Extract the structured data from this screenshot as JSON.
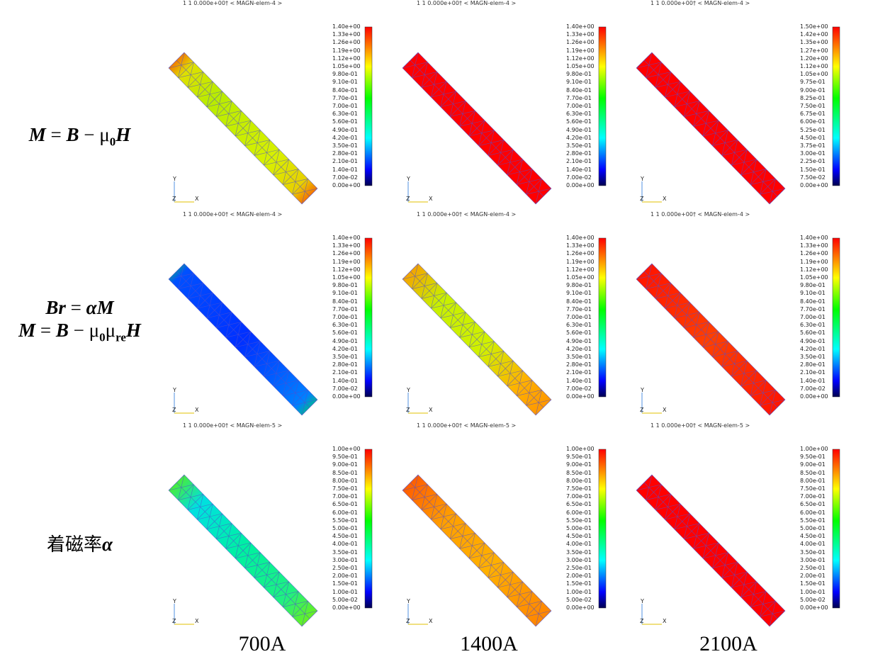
{
  "row_labels": [
    {
      "parts": [
        "M",
        " = ",
        "B",
        " − ",
        "μ",
        "0",
        "H"
      ]
    },
    {
      "line1": [
        "Br",
        " = ",
        "α",
        "M"
      ],
      "line2": [
        "M",
        " = ",
        "B",
        " − ",
        "μ",
        "0",
        "μ",
        "re",
        "H"
      ]
    },
    {
      "jp": "着磁率",
      "alpha": "α"
    }
  ],
  "col_labels": [
    "700A",
    "1400A",
    "2100A"
  ],
  "panel_header_prefix": "1   1  0.000e+00† < ",
  "axes": {
    "y": "Y",
    "z": "Z",
    "x": "X"
  },
  "colors": {
    "low": "#000050",
    "blue": "#0000ff",
    "cyan": "#00ffff",
    "green": "#00ff00",
    "yellow": "#ffff00",
    "red": "#ff0000",
    "mesh": "#5050d0"
  },
  "panels": [
    {
      "header": "MAGN-elem-4 >",
      "ticks": [
        "1.40e+00",
        "1.33e+00",
        "1.26e+00",
        "1.19e+00",
        "1.12e+00",
        "1.05e+00",
        "9.80e-01",
        "9.10e-01",
        "8.40e-01",
        "7.70e-01",
        "7.00e-01",
        "6.30e-01",
        "5.60e-01",
        "4.90e-01",
        "4.20e-01",
        "3.50e-01",
        "2.80e-01",
        "2.10e-01",
        "1.40e-01",
        "7.00e-02",
        "0.00e+00"
      ],
      "field": "m700"
    },
    {
      "header": "MAGN-elem-4 >",
      "ticks": [
        "1.40e+00",
        "1.33e+00",
        "1.26e+00",
        "1.19e+00",
        "1.12e+00",
        "1.05e+00",
        "9.80e-01",
        "9.10e-01",
        "8.40e-01",
        "7.70e-01",
        "7.00e-01",
        "6.30e-01",
        "5.60e-01",
        "4.90e-01",
        "4.20e-01",
        "3.50e-01",
        "2.80e-01",
        "2.10e-01",
        "1.40e-01",
        "7.00e-02",
        "0.00e+00"
      ],
      "field": "red"
    },
    {
      "header": "MAGN-elem-4 >",
      "ticks": [
        "1.50e+00",
        "1.42e+00",
        "1.35e+00",
        "1.27e+00",
        "1.20e+00",
        "1.12e+00",
        "1.05e+00",
        "9.75e-01",
        "9.00e-01",
        "8.25e-01",
        "7.50e-01",
        "6.75e-01",
        "6.00e-01",
        "5.25e-01",
        "4.50e-01",
        "3.75e-01",
        "3.00e-01",
        "2.25e-01",
        "1.50e-01",
        "7.50e-02",
        "0.00e+00"
      ],
      "field": "red"
    },
    {
      "header": "MAGN-elem-4 >",
      "ticks": [
        "1.40e+00",
        "1.33e+00",
        "1.26e+00",
        "1.19e+00",
        "1.12e+00",
        "1.05e+00",
        "9.80e-01",
        "9.10e-01",
        "8.40e-01",
        "7.70e-01",
        "7.00e-01",
        "6.30e-01",
        "5.60e-01",
        "4.90e-01",
        "4.20e-01",
        "3.50e-01",
        "2.80e-01",
        "2.10e-01",
        "1.40e-01",
        "7.00e-02",
        "0.00e+00"
      ],
      "field": "br700"
    },
    {
      "header": "MAGN-elem-4 >",
      "ticks": [
        "1.40e+00",
        "1.33e+00",
        "1.26e+00",
        "1.19e+00",
        "1.12e+00",
        "1.05e+00",
        "9.80e-01",
        "9.10e-01",
        "8.40e-01",
        "7.70e-01",
        "7.00e-01",
        "6.30e-01",
        "5.60e-01",
        "4.90e-01",
        "4.20e-01",
        "3.50e-01",
        "2.80e-01",
        "2.10e-01",
        "1.40e-01",
        "7.00e-02",
        "0.00e+00"
      ],
      "field": "br1400"
    },
    {
      "header": "MAGN-elem-4 >",
      "ticks": [
        "1.40e+00",
        "1.33e+00",
        "1.26e+00",
        "1.19e+00",
        "1.12e+00",
        "1.05e+00",
        "9.80e-01",
        "9.10e-01",
        "8.40e-01",
        "7.70e-01",
        "7.00e-01",
        "6.30e-01",
        "5.60e-01",
        "4.90e-01",
        "4.20e-01",
        "3.50e-01",
        "2.80e-01",
        "2.10e-01",
        "1.40e-01",
        "7.00e-02",
        "0.00e+00"
      ],
      "field": "br2100"
    },
    {
      "header": "MAGN-elem-5 >",
      "ticks": [
        "1.00e+00",
        "9.50e-01",
        "9.00e-01",
        "8.50e-01",
        "8.00e-01",
        "7.50e-01",
        "7.00e-01",
        "6.50e-01",
        "6.00e-01",
        "5.50e-01",
        "5.00e-01",
        "4.50e-01",
        "4.00e-01",
        "3.50e-01",
        "3.00e-01",
        "2.50e-01",
        "2.00e-01",
        "1.50e-01",
        "1.00e-01",
        "5.00e-02",
        "0.00e+00"
      ],
      "field": "a700"
    },
    {
      "header": "MAGN-elem-5 >",
      "ticks": [
        "1.00e+00",
        "9.50e-01",
        "9.00e-01",
        "8.50e-01",
        "8.00e-01",
        "7.50e-01",
        "7.00e-01",
        "6.50e-01",
        "6.00e-01",
        "5.50e-01",
        "5.00e-01",
        "4.50e-01",
        "4.00e-01",
        "3.50e-01",
        "3.00e-01",
        "2.50e-01",
        "2.00e-01",
        "1.50e-01",
        "1.00e-01",
        "5.00e-02",
        "0.00e+00"
      ],
      "field": "a1400"
    },
    {
      "header": "MAGN-elem-5 >",
      "ticks": [
        "1.00e+00",
        "9.50e-01",
        "9.00e-01",
        "8.50e-01",
        "8.00e-01",
        "7.50e-01",
        "7.00e-01",
        "6.50e-01",
        "6.00e-01",
        "5.50e-01",
        "5.00e-01",
        "4.50e-01",
        "4.00e-01",
        "3.50e-01",
        "3.00e-01",
        "2.50e-01",
        "2.00e-01",
        "1.50e-01",
        "1.00e-01",
        "5.00e-02",
        "0.00e+00"
      ],
      "field": "red"
    }
  ]
}
